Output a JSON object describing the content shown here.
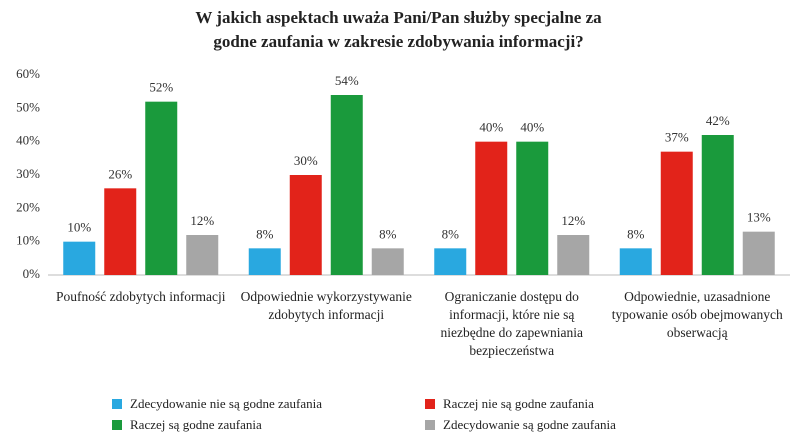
{
  "chart_data": {
    "type": "bar",
    "title": "W jakich aspektach uważa Pani/Pan służby specjalne za godne zaufania w zakresie zdobywania informacji?",
    "categories": [
      "Poufność zdobytych informacji",
      "Odpowiednie wykorzystywanie zdobytych informacji",
      "Ograniczanie dostępu do informacji, które nie są niezbędne do zapewniania bezpieczeństwa",
      "Odpowiednie, uzasadnione typowanie osób obejmowanych obserwacją"
    ],
    "series": [
      {
        "name": "Zdecydowanie nie są godne zaufania",
        "color": "#29a8e0",
        "values": [
          10,
          8,
          8,
          8
        ],
        "value_labels": [
          "10%",
          "8%",
          "8%",
          "8%"
        ]
      },
      {
        "name": "Raczej nie są godne zaufania",
        "color": "#e2231a",
        "values": [
          26,
          30,
          40,
          37
        ],
        "value_labels": [
          "26%",
          "30%",
          "40%",
          "37%"
        ]
      },
      {
        "name": "Raczej są godne zaufania",
        "color": "#1a9a3c",
        "values": [
          52,
          54,
          40,
          42
        ],
        "value_labels": [
          "52%",
          "54%",
          "40%",
          "42%"
        ]
      },
      {
        "name": "Zdecydowanie są godne zaufania",
        "color": "#a6a6a6",
        "values": [
          12,
          8,
          12,
          13
        ],
        "value_labels": [
          "12%",
          "8%",
          "12%",
          "13%"
        ]
      }
    ],
    "ylim": [
      0,
      60
    ],
    "yticks": [
      {
        "value": 0,
        "label": "0%"
      },
      {
        "value": 10,
        "label": "10%"
      },
      {
        "value": 20,
        "label": "20%"
      },
      {
        "value": 30,
        "label": "30%"
      },
      {
        "value": 40,
        "label": "40%"
      },
      {
        "value": 50,
        "label": "50%"
      },
      {
        "value": 60,
        "label": "60%"
      }
    ],
    "grid": false,
    "legend": "bottom"
  }
}
